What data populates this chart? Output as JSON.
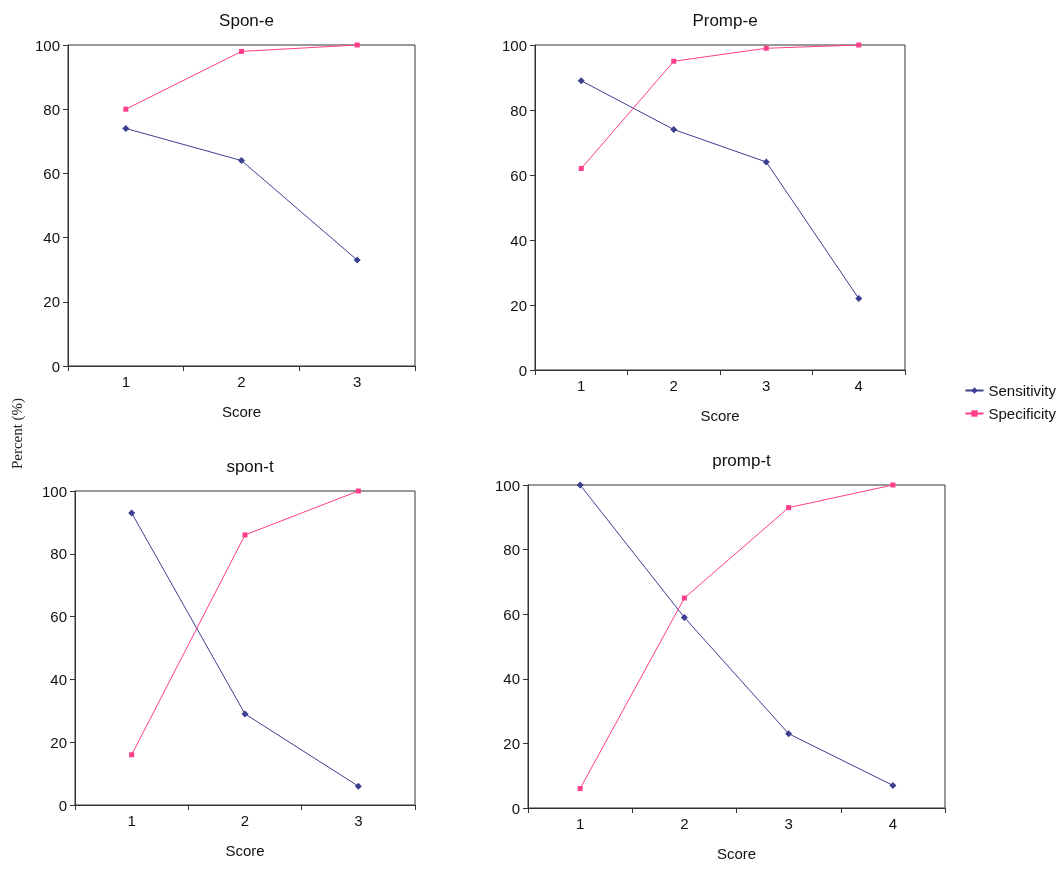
{
  "chart_data": [
    {
      "type": "line",
      "title": "Spon-e",
      "xlabel": "Score",
      "ylabel": "Percent (%)",
      "categories": [
        "1",
        "2",
        "3"
      ],
      "ylim": [
        0,
        100
      ],
      "yticks": [
        0,
        20,
        40,
        60,
        80,
        100
      ],
      "grid": false,
      "legend": false,
      "series": [
        {
          "color": "#3b3f8f",
          "marker": "diamond",
          "values": [
            74,
            64,
            33
          ]
        },
        {
          "color": "#ff3d8a",
          "marker": "square",
          "values": [
            80,
            98,
            100
          ]
        }
      ]
    },
    {
      "type": "line",
      "title": "Promp-e",
      "xlabel": "Score",
      "categories": [
        "1",
        "2",
        "3",
        "4"
      ],
      "ylim": [
        0,
        100
      ],
      "yticks": [
        0,
        20,
        40,
        60,
        80,
        100
      ],
      "grid": false,
      "legend": "right",
      "series": [
        {
          "name": "Sensitivity",
          "color": "#3b3f8f",
          "marker": "diamond",
          "values": [
            89,
            74,
            64,
            22
          ]
        },
        {
          "name": "Specificity",
          "color": "#ff3d8a",
          "marker": "square",
          "values": [
            62,
            95,
            99,
            100
          ]
        }
      ]
    },
    {
      "type": "line",
      "title": "spon-t",
      "xlabel": "Score",
      "categories": [
        "1",
        "2",
        "3"
      ],
      "ylim": [
        0,
        100
      ],
      "yticks": [
        0,
        20,
        40,
        60,
        80,
        100
      ],
      "grid": false,
      "legend": false,
      "series": [
        {
          "color": "#3b3f8f",
          "marker": "diamond",
          "values": [
            93,
            29,
            6
          ]
        },
        {
          "color": "#ff3d8a",
          "marker": "square",
          "values": [
            16,
            86,
            100
          ]
        }
      ]
    },
    {
      "type": "line",
      "title": "promp-t",
      "xlabel": "Score",
      "categories": [
        "1",
        "2",
        "3",
        "4"
      ],
      "ylim": [
        0,
        100
      ],
      "yticks": [
        0,
        20,
        40,
        60,
        80,
        100
      ],
      "grid": false,
      "legend": false,
      "series": [
        {
          "color": "#3b3f8f",
          "marker": "diamond",
          "values": [
            100,
            59,
            23,
            7
          ]
        },
        {
          "color": "#ff3d8a",
          "marker": "square",
          "values": [
            6,
            65,
            93,
            100
          ]
        }
      ]
    }
  ]
}
